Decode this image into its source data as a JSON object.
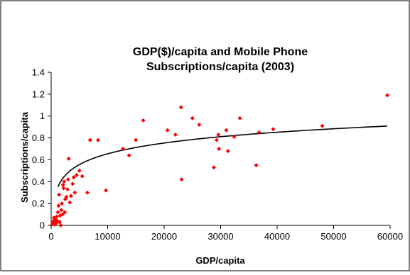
{
  "chart_data": {
    "type": "scatter",
    "title_lines": [
      "GDP($)/capita and Mobile Phone",
      "Subscriptions/capita (2003)"
    ],
    "xlabel": "GDP/capita",
    "ylabel": "Subscriptions/capita",
    "xlim": [
      0,
      60000
    ],
    "ylim": [
      0,
      1.4
    ],
    "xticks": [
      0,
      10000,
      20000,
      30000,
      40000,
      50000,
      60000
    ],
    "yticks": [
      0,
      0.2,
      0.4,
      0.6,
      0.8,
      1.0,
      1.2,
      1.4
    ],
    "xtick_labels": [
      "0",
      "10000",
      "20000",
      "30000",
      "40000",
      "50000",
      "60000"
    ],
    "ytick_labels": [
      "0",
      "0.2",
      "0.4",
      "0.6",
      "0.8",
      "1",
      "1.2",
      "1.4"
    ],
    "point_color": "#ff0000",
    "trendline_color": "#000000",
    "grid": false,
    "legend": "none",
    "points": [
      [
        200,
        0.01
      ],
      [
        300,
        0.02
      ],
      [
        400,
        0.04
      ],
      [
        500,
        0.07
      ],
      [
        600,
        0.01
      ],
      [
        700,
        0.03
      ],
      [
        800,
        0.05
      ],
      [
        900,
        0.02
      ],
      [
        1000,
        0.08
      ],
      [
        1100,
        0.04
      ],
      [
        1200,
        0.12
      ],
      [
        1300,
        0.18
      ],
      [
        1400,
        0.28
      ],
      [
        1500,
        0.03
      ],
      [
        1600,
        0.09
      ],
      [
        1700,
        0.0
      ],
      [
        1800,
        0.14
      ],
      [
        1900,
        0.2
      ],
      [
        2000,
        0.1
      ],
      [
        2100,
        0.37
      ],
      [
        2200,
        0.34
      ],
      [
        2300,
        0.4
      ],
      [
        2400,
        0.12
      ],
      [
        2500,
        0.24
      ],
      [
        2700,
        0.26
      ],
      [
        2900,
        0.33
      ],
      [
        3000,
        0.42
      ],
      [
        3100,
        0.61
      ],
      [
        3300,
        0.21
      ],
      [
        3500,
        0.27
      ],
      [
        3800,
        0.38
      ],
      [
        4000,
        0.44
      ],
      [
        4200,
        0.3
      ],
      [
        4500,
        0.46
      ],
      [
        5000,
        0.5
      ],
      [
        5500,
        0.45
      ],
      [
        6400,
        0.3
      ],
      [
        6900,
        0.78
      ],
      [
        8300,
        0.78
      ],
      [
        9700,
        0.32
      ],
      [
        12700,
        0.7
      ],
      [
        13800,
        0.64
      ],
      [
        15000,
        0.78
      ],
      [
        16300,
        0.96
      ],
      [
        20600,
        0.87
      ],
      [
        22000,
        0.83
      ],
      [
        23000,
        1.08
      ],
      [
        23100,
        0.42
      ],
      [
        25000,
        0.98
      ],
      [
        26200,
        0.92
      ],
      [
        28800,
        0.53
      ],
      [
        29300,
        0.78
      ],
      [
        29600,
        0.83
      ],
      [
        29700,
        0.7
      ],
      [
        31000,
        0.87
      ],
      [
        31300,
        0.68
      ],
      [
        32400,
        0.81
      ],
      [
        33400,
        0.98
      ],
      [
        36300,
        0.55
      ],
      [
        36800,
        0.85
      ],
      [
        39300,
        0.88
      ],
      [
        48000,
        0.91
      ],
      [
        59500,
        1.19
      ]
    ],
    "trendline": {
      "type": "logarithmic",
      "a": 0.1422,
      "b": -0.655,
      "x_start": 1200,
      "x_end": 59500
    }
  }
}
